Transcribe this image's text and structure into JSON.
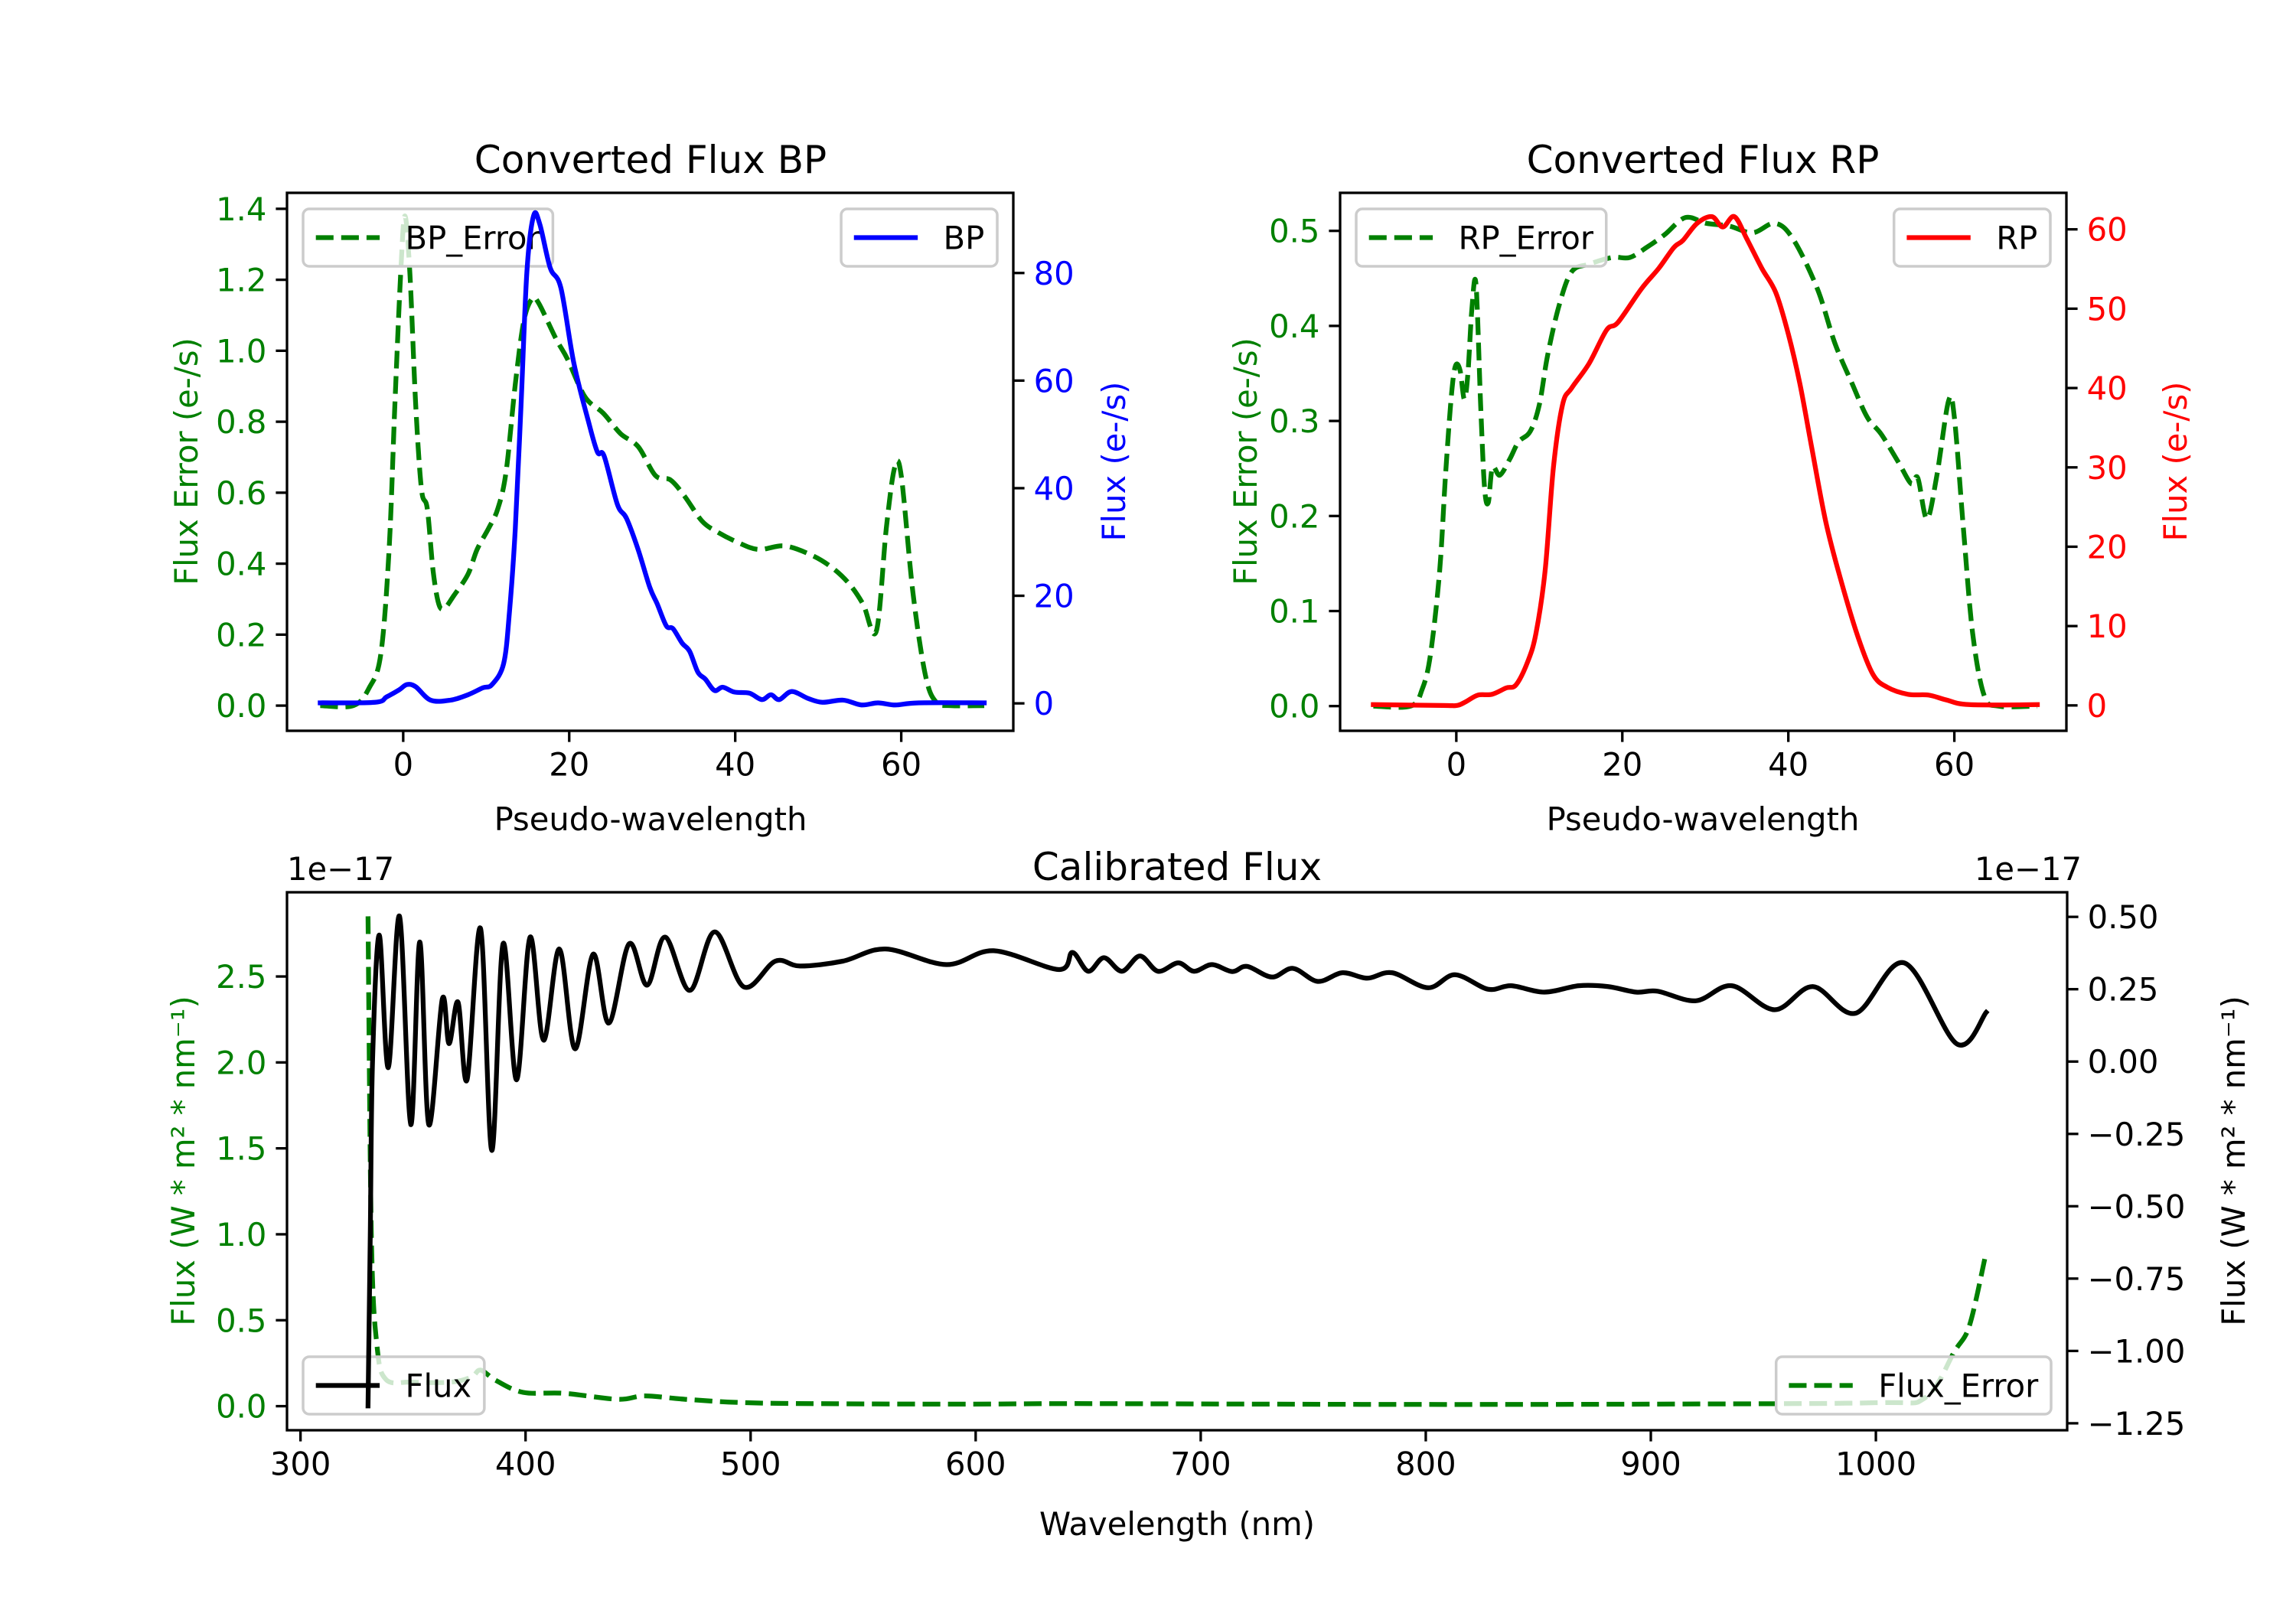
{
  "figure": {
    "background": "#ffffff"
  },
  "chart_data": [
    {
      "type": "line",
      "title": "Converted Flux BP",
      "xlabel": "Pseudo-wavelength",
      "ylabel_left": "Flux Error (e-/s)",
      "ylabel_right": "Flux (e-/s)",
      "xlim": [
        -14.0,
        73.5
      ],
      "ylim_left": [
        -0.071,
        1.445
      ],
      "ylim_right": [
        -5.1,
        94.9
      ],
      "grid": false,
      "colors": {
        "left_axis": "#008000",
        "right_axis": "#0000ff",
        "x_axis": "#000000"
      },
      "x_ticks": {
        "values": [
          0,
          20,
          40,
          60
        ],
        "labels": [
          "0",
          "20",
          "40",
          "60"
        ]
      },
      "y_ticks_left": {
        "values": [
          0.0,
          0.2,
          0.4,
          0.6,
          0.8,
          1.0,
          1.2,
          1.4
        ],
        "labels": [
          "0.0",
          "0.2",
          "0.4",
          "0.6",
          "0.8",
          "1.0",
          "1.2",
          "1.4"
        ]
      },
      "y_ticks_right": {
        "values": [
          0,
          20,
          40,
          60,
          80
        ],
        "labels": [
          "0",
          "20",
          "40",
          "60",
          "80"
        ]
      },
      "series": [
        {
          "name": "BP_Error",
          "axis": "left",
          "style": "dashed",
          "color": "#008000",
          "x": [
            -10,
            -6,
            -4.1,
            -2.7,
            -1.7,
            -1.0,
            -0.3,
            0.2,
            0.8,
            1.5,
            2.2,
            2.9,
            3.6,
            4.3,
            5.0,
            6.1,
            7.8,
            8.9,
            10.3,
            11.4,
            12.4,
            13.5,
            14.5,
            15.5,
            16.3,
            18.4,
            19.8,
            21.9,
            24.1,
            26.2,
            28.3,
            30.4,
            32.2,
            33.9,
            36.0,
            37.8,
            40.3,
            42.8,
            45.9,
            49.1,
            51.6,
            53.7,
            55.4,
            57.0,
            58.2,
            59.2,
            60.0,
            61.4,
            62.9,
            64.2,
            66,
            70
          ],
          "y": [
            0,
            0,
            0.05,
            0.145,
            0.44,
            0.85,
            1.22,
            1.38,
            1.22,
            0.85,
            0.61,
            0.555,
            0.38,
            0.285,
            0.275,
            0.31,
            0.37,
            0.44,
            0.5,
            0.555,
            0.66,
            0.905,
            1.08,
            1.146,
            1.135,
            1.034,
            0.976,
            0.87,
            0.824,
            0.766,
            0.73,
            0.648,
            0.636,
            0.59,
            0.52,
            0.49,
            0.46,
            0.44,
            0.45,
            0.425,
            0.39,
            0.344,
            0.286,
            0.21,
            0.5,
            0.67,
            0.648,
            0.32,
            0.087,
            0.01,
            0,
            0
          ]
        },
        {
          "name": "BP",
          "axis": "right",
          "style": "solid",
          "color": "#0000ff",
          "x": [
            -10,
            -3.4,
            -2.0,
            -0.5,
            0.44,
            1.5,
            3.3,
            5.7,
            7.8,
            9.6,
            10.7,
            12.1,
            12.8,
            13.5,
            14.2,
            14.9,
            15.7,
            16.45,
            17.7,
            19.0,
            20.55,
            22.3,
            23.4,
            24.2,
            25.8,
            26.9,
            28.3,
            29.7,
            30.6,
            31.7,
            32.5,
            33.6,
            34.5,
            35.5,
            36.4,
            37.5,
            38.5,
            39.9,
            41.7,
            43.2,
            44.3,
            45.3,
            46.8,
            48.8,
            50.5,
            53,
            55.2,
            57.2,
            59.3,
            62.1,
            70
          ],
          "y": [
            0.1,
            0.2,
            1.2,
            2.5,
            3.5,
            3.1,
            0.6,
            0.6,
            1.6,
            2.9,
            3.5,
            7.4,
            17,
            32.4,
            55.6,
            80.2,
            90.6,
            89.1,
            81,
            77.2,
            63.3,
            52.5,
            46.7,
            46,
            37,
            34.4,
            28.6,
            21.6,
            18.5,
            14.4,
            13.9,
            11.2,
            9.7,
            5.8,
            4.5,
            2.4,
            3.0,
            2.1,
            1.9,
            0.7,
            1.6,
            0.7,
            2.2,
            0.9,
            0.2,
            0.6,
            -0.3,
            0.1,
            -0.3,
            0.1,
            0.1
          ]
        }
      ],
      "legends": [
        {
          "label": "BP_Error",
          "series": 0,
          "placement": "upper-left"
        },
        {
          "label": "BP",
          "series": 1,
          "placement": "upper-right"
        }
      ]
    },
    {
      "type": "line",
      "title": "Converted Flux RP",
      "xlabel": "Pseudo-wavelength",
      "ylabel_left": "Flux Error (e-/s)",
      "ylabel_right": "Flux (e-/s)",
      "xlim": [
        -14.0,
        73.5
      ],
      "ylim_left": [
        -0.026,
        0.54
      ],
      "ylim_right": [
        -3.2,
        64.6
      ],
      "grid": false,
      "colors": {
        "left_axis": "#008000",
        "right_axis": "#ff0000",
        "x_axis": "#000000"
      },
      "x_ticks": {
        "values": [
          0,
          20,
          40,
          60
        ],
        "labels": [
          "0",
          "20",
          "40",
          "60"
        ]
      },
      "y_ticks_left": {
        "values": [
          0.0,
          0.1,
          0.2,
          0.3,
          0.4,
          0.5
        ],
        "labels": [
          "0.0",
          "0.1",
          "0.2",
          "0.3",
          "0.4",
          "0.5"
        ]
      },
      "y_ticks_right": {
        "values": [
          0,
          10,
          20,
          30,
          40,
          50,
          60
        ],
        "labels": [
          "0",
          "10",
          "20",
          "30",
          "40",
          "50",
          "60"
        ]
      },
      "series": [
        {
          "name": "RP_Error",
          "axis": "left",
          "style": "dashed",
          "color": "#008000",
          "x": [
            -10,
            -5.5,
            -4.1,
            -3.1,
            -2.0,
            -1.3,
            -0.6,
            -0.1,
            0.46,
            0.96,
            1.4,
            1.87,
            2.37,
            2.93,
            3.4,
            3.85,
            4.35,
            5.25,
            6.45,
            7.5,
            8.9,
            10.0,
            11.0,
            12.4,
            13.9,
            16.0,
            18.8,
            20.9,
            23.0,
            25.1,
            27.6,
            30.1,
            32.9,
            35.7,
            38.4,
            40.6,
            43.5,
            45.6,
            47.7,
            49.5,
            51.2,
            53.3,
            54.8,
            55.6,
            56.7,
            57.9,
            59.3,
            60.0,
            61.1,
            62.2,
            63.6,
            65.3,
            70
          ],
          "y": [
            0,
            0,
            0.018,
            0.055,
            0.143,
            0.243,
            0.326,
            0.358,
            0.353,
            0.323,
            0.35,
            0.417,
            0.444,
            0.317,
            0.23,
            0.214,
            0.251,
            0.243,
            0.26,
            0.278,
            0.289,
            0.317,
            0.369,
            0.422,
            0.457,
            0.465,
            0.472,
            0.472,
            0.483,
            0.496,
            0.514,
            0.508,
            0.505,
            0.498,
            0.508,
            0.491,
            0.439,
            0.382,
            0.339,
            0.304,
            0.286,
            0.256,
            0.234,
            0.24,
            0.197,
            0.243,
            0.321,
            0.304,
            0.186,
            0.077,
            0.011,
            0,
            0
          ]
        },
        {
          "name": "RP",
          "axis": "right",
          "style": "solid",
          "color": "#ff0000",
          "x": [
            -10,
            -1.7,
            0.1,
            1.2,
            2.6,
            4.3,
            6.0,
            7.2,
            8.6,
            9.6,
            10.7,
            11.7,
            12.8,
            13.9,
            16.0,
            18.1,
            19.5,
            22.3,
            24.4,
            26.2,
            27.3,
            29.0,
            30.8,
            32.1,
            33.5,
            35.0,
            36.8,
            38.5,
            40.0,
            41.4,
            42.8,
            44.5,
            46.3,
            48.4,
            50.2,
            51.9,
            54.4,
            56.9,
            59.0,
            61.8,
            70
          ],
          "y": [
            0.1,
            0,
            0,
            0.5,
            1.3,
            1.4,
            2.2,
            2.6,
            5.5,
            9.1,
            17,
            30,
            37.9,
            40,
            43.1,
            47.3,
            48.3,
            52.5,
            55.1,
            57.7,
            58.6,
            60.75,
            61.6,
            60.3,
            61.6,
            58.8,
            55.1,
            52,
            46.8,
            40.5,
            32.6,
            23.2,
            15.9,
            8.6,
            3.9,
            2.3,
            1.4,
            1.3,
            0.7,
            0.1,
            0.1
          ]
        }
      ],
      "legends": [
        {
          "label": "RP_Error",
          "series": 0,
          "placement": "upper-left"
        },
        {
          "label": "RP",
          "series": 1,
          "placement": "upper-right"
        }
      ]
    },
    {
      "type": "line",
      "title": "Calibrated Flux",
      "xlabel": "Wavelength (nm)",
      "ylabel_left": "Flux (W * m² * nm⁻¹)",
      "ylabel_right": "Flux (W * m² * nm⁻¹)",
      "offset_label_left": "1e−17",
      "offset_label_right": "1e−17",
      "xlim": [
        294,
        1085
      ],
      "ylim_left": [
        -0.14,
        2.99
      ],
      "ylim_right": [
        -1.274,
        0.585
      ],
      "grid": false,
      "colors": {
        "left_axis": "#008000",
        "right_axis": "#000000",
        "x_axis": "#000000"
      },
      "x_ticks": {
        "values": [
          300,
          400,
          500,
          600,
          700,
          800,
          900,
          1000
        ],
        "labels": [
          "300",
          "400",
          "500",
          "600",
          "700",
          "800",
          "900",
          "1000"
        ]
      },
      "y_ticks_left": {
        "values": [
          0.0,
          0.5,
          1.0,
          1.5,
          2.0,
          2.5
        ],
        "labels": [
          "0.0",
          "0.5",
          "1.0",
          "1.5",
          "2.0",
          "2.5"
        ]
      },
      "y_ticks_right": {
        "values": [
          0.5,
          0.25,
          0.0,
          -0.25,
          -0.5,
          -0.75,
          -1.0,
          -1.25
        ],
        "labels": [
          "0.50",
          "0.25",
          "0.00",
          "−0.25",
          "−0.50",
          "−0.75",
          "−1.00",
          "−1.25"
        ]
      },
      "series": [
        {
          "name": "Flux_Error",
          "axis": "left",
          "style": "dashed",
          "color": "#008000",
          "x": [
            330,
            331.5,
            334,
            338,
            349,
            367,
            376,
            380,
            386.8,
            399,
            417,
            441,
            453,
            471,
            498,
            538,
            599,
            640,
            700,
            800,
            900,
            1000,
            1022,
            1035,
            1041.6,
            1048.6
          ],
          "y": [
            2.85,
            0.98,
            0.35,
            0.155,
            0.14,
            0.14,
            0.17,
            0.21,
            0.15,
            0.08,
            0.075,
            0.04,
            0.06,
            0.04,
            0.02,
            0.014,
            0.012,
            0.015,
            0.013,
            0.01,
            0.012,
            0.02,
            0.05,
            0.32,
            0.47,
            0.87
          ]
        },
        {
          "name": "Flux",
          "axis": "right",
          "style": "solid",
          "color": "#000000",
          "x": [
            330,
            331,
            332,
            335,
            339,
            344,
            349,
            353,
            357,
            363,
            366,
            370,
            374,
            380,
            385,
            390,
            396,
            402,
            408,
            415,
            422,
            430,
            437,
            446,
            454,
            462,
            473,
            484,
            497,
            511,
            522,
            541,
            560,
            587,
            608,
            637,
            643,
            650,
            657,
            665,
            673,
            681,
            690,
            697,
            705,
            714,
            720.6,
            731.6,
            741,
            752,
            763,
            774,
            785,
            801,
            813,
            827.6,
            838,
            852.7,
            868,
            881,
            893.5,
            903,
            920,
            936,
            955,
            972,
            991,
            1012.6,
            1036,
            1049
          ],
          "y": [
            -1.19,
            -0.6,
            0.0,
            0.437,
            -0.021,
            0.502,
            -0.218,
            0.413,
            -0.218,
            0.216,
            0.062,
            0.205,
            -0.063,
            0.46,
            -0.307,
            0.407,
            -0.063,
            0.43,
            0.074,
            0.389,
            0.044,
            0.371,
            0.133,
            0.407,
            0.264,
            0.43,
            0.246,
            0.448,
            0.258,
            0.347,
            0.33,
            0.347,
            0.389,
            0.335,
            0.383,
            0.318,
            0.377,
            0.312,
            0.359,
            0.312,
            0.365,
            0.312,
            0.341,
            0.312,
            0.335,
            0.311,
            0.329,
            0.292,
            0.322,
            0.277,
            0.307,
            0.288,
            0.307,
            0.255,
            0.3,
            0.25,
            0.262,
            0.24,
            0.262,
            0.259,
            0.24,
            0.243,
            0.21,
            0.262,
            0.179,
            0.259,
            0.167,
            0.341,
            0.061,
            0.17
          ]
        }
      ],
      "legends": [
        {
          "label": "Flux",
          "series": 1,
          "placement": "lower-left"
        },
        {
          "label": "Flux_Error",
          "series": 0,
          "placement": "lower-right"
        }
      ]
    }
  ]
}
